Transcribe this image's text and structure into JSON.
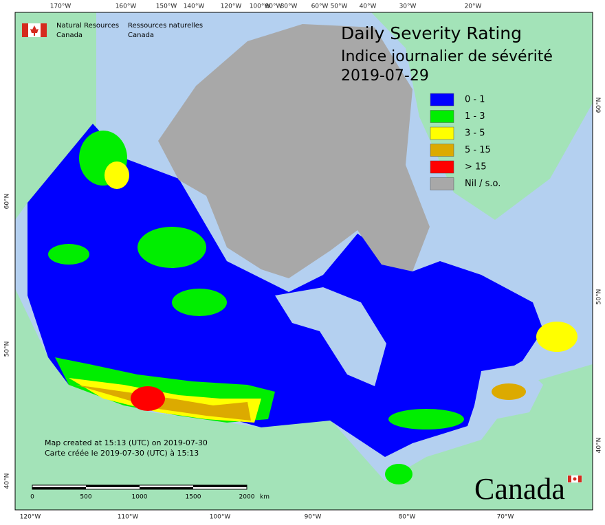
{
  "agency": {
    "en_line1": "Natural Resources",
    "en_line2": "Canada",
    "fr_line1": "Ressources naturelles",
    "fr_line2": "Canada"
  },
  "title": {
    "line1": "Daily Severity Rating",
    "line2": "Indice journalier de sévérité",
    "line3": "2019-07-29"
  },
  "legend": [
    {
      "label": "0 - 1",
      "color": "#0000ff"
    },
    {
      "label": "1 - 3",
      "color": "#00ee00"
    },
    {
      "label": "3 - 5",
      "color": "#ffff00"
    },
    {
      "label": "5 - 15",
      "color": "#dcaa00"
    },
    {
      "label": "> 15",
      "color": "#ff0000"
    },
    {
      "label": "Nil / s.o.",
      "color": "#a8a8a8"
    }
  ],
  "axes": {
    "top": [
      "170°W",
      "160°W",
      "150°W",
      "140°W",
      "120°W",
      "100°W",
      "90°W",
      "80°W",
      "60°W",
      "50°W",
      "40°W",
      "30°W",
      "20°W"
    ],
    "bottom": [
      "120°W",
      "110°W",
      "100°W",
      "90°W",
      "80°W",
      "70°W"
    ],
    "left": [
      "60°N",
      "50°N",
      "40°N"
    ],
    "right": [
      "60°N",
      "50°N",
      "40°N"
    ]
  },
  "footer": {
    "line1": "Map created at 15:13 (UTC) on 2019-07-30",
    "line2": "Carte créée le 2019-07-30 (UTC) à 15:13"
  },
  "scale": {
    "labels": [
      "0",
      "500",
      "1000",
      "1500",
      "2000"
    ],
    "unit": "km"
  },
  "wordmark": "Canada"
}
